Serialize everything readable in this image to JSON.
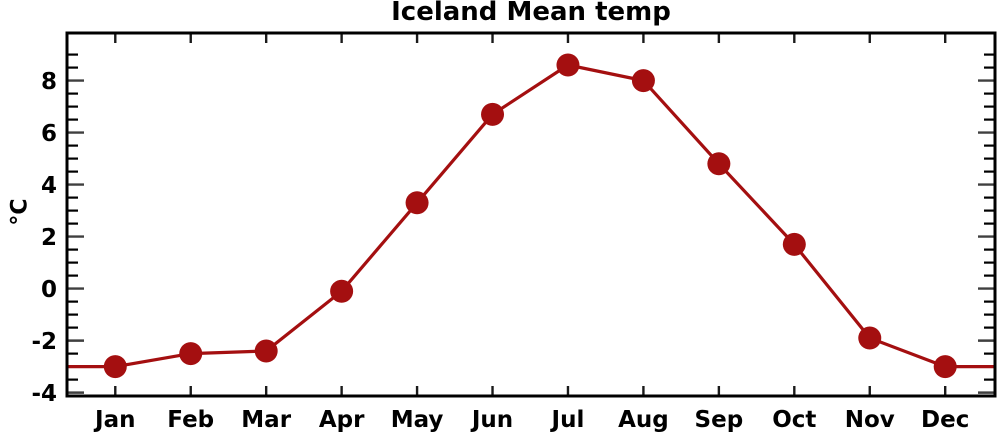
{
  "chart_data": {
    "type": "line",
    "title": "Iceland Mean temp",
    "ylabel": "°C",
    "categories": [
      "Jan",
      "Feb",
      "Mar",
      "Apr",
      "May",
      "Jun",
      "Jul",
      "Aug",
      "Sep",
      "Oct",
      "Nov",
      "Dec"
    ],
    "x": [
      1,
      2,
      3,
      4,
      5,
      6,
      7,
      8,
      9,
      10,
      11,
      12
    ],
    "values": [
      -3.0,
      -2.5,
      -2.4,
      -0.1,
      3.3,
      6.7,
      8.6,
      8.0,
      4.8,
      1.7,
      -1.9,
      -3.0
    ],
    "xlim": [
      0.36,
      12.66
    ],
    "ylim": [
      -4.13,
      9.83
    ],
    "yticks_major": [
      -4,
      -2,
      0,
      2,
      4,
      6,
      8
    ],
    "ytick_labels": [
      "-4",
      "-2",
      "0",
      "2",
      "4",
      "6",
      "8"
    ],
    "ytick_minor": {
      "start": -4,
      "end": 9,
      "step": 0.5
    },
    "grid": false,
    "legend": null,
    "line_extends_to_plot_edges": true,
    "marker": "filled-circle",
    "marker_radius": 11.5,
    "line_width": 3.2,
    "colors": {
      "line": "#a40f10",
      "marker": "#a40f10",
      "frame": "#000000",
      "minor_tick": "#000000",
      "major_tick": "#3f3f3f",
      "month_tick": "#1a1a1a",
      "text": "#000000",
      "background": "#ffffff"
    }
  }
}
